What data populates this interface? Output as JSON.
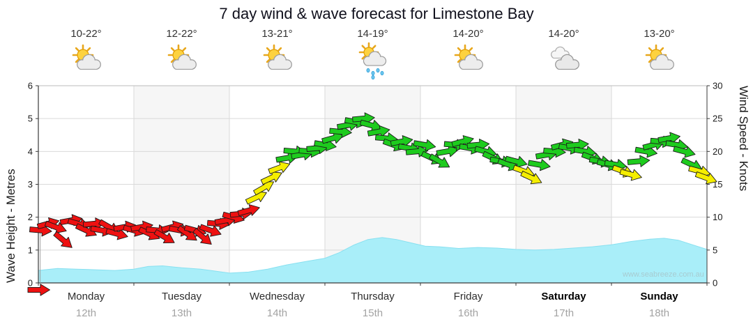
{
  "title": "7 day wind & wave forecast for Limestone Bay",
  "watermark": "www.seabreeze.com.au",
  "axes": {
    "left_label": "Wave Height - Metres",
    "right_label": "Wind Speed - Knots",
    "left_ticks": [
      0,
      1,
      2,
      3,
      4,
      5,
      6
    ],
    "right_ticks": [
      0,
      5,
      10,
      15,
      20,
      25,
      30
    ],
    "left_range": [
      0,
      6
    ],
    "right_range": [
      0,
      30
    ]
  },
  "days": [
    {
      "name": "Monday",
      "date": "12th",
      "temp": "10-22°",
      "icon": "partly-cloudy",
      "bold": false
    },
    {
      "name": "Tuesday",
      "date": "13th",
      "temp": "12-22°",
      "icon": "partly-cloudy",
      "bold": false
    },
    {
      "name": "Wednesday",
      "date": "14th",
      "temp": "13-21°",
      "icon": "partly-cloudy",
      "bold": false
    },
    {
      "name": "Thursday",
      "date": "15th",
      "temp": "14-19°",
      "icon": "rain",
      "bold": false
    },
    {
      "name": "Friday",
      "date": "16th",
      "temp": "14-20°",
      "icon": "partly-cloudy",
      "bold": false
    },
    {
      "name": "Saturday",
      "date": "17th",
      "temp": "14-20°",
      "icon": "cloudy",
      "bold": true
    },
    {
      "name": "Sunday",
      "date": "18th",
      "temp": "13-20°",
      "icon": "partly-cloudy",
      "bold": true
    }
  ],
  "colors": {
    "wind_low": "#ee1111",
    "wind_mid": "#f5ee00",
    "wind_high": "#1ecb1e",
    "wave_fill": "#a9eef9",
    "wave_edge": "#88e0f0",
    "grid": "#d9d9d9",
    "band": "#f6f6f6"
  },
  "chart_data": {
    "type": "line",
    "title": "7 day wind & wave forecast for Limestone Bay",
    "x_axis": "day index (0 = start of Monday 12th, each unit = 1 day)",
    "x_ticks": [
      "Monday 12th",
      "Tuesday 13th",
      "Wednesday 14th",
      "Thursday 15th",
      "Friday 16th",
      "Saturday 17th",
      "Sunday 18th"
    ],
    "y_left": {
      "label": "Wave Height - Metres",
      "range": [
        0,
        6
      ]
    },
    "y_right": {
      "label": "Wind Speed - Knots",
      "range": [
        0,
        30
      ]
    },
    "color_rule": "wind arrows: red < 12 kn, yellow 12-17.5 kn, green > 17.5 kn",
    "series": [
      {
        "name": "Wind Speed",
        "units": "knots",
        "style": "direction-arrows",
        "format": "[day, knots, direction_deg_cw_from_east]",
        "points": [
          [
            0.0,
            0,
            0
          ],
          [
            0.02,
            8,
            5
          ],
          [
            0.1,
            9,
            -15
          ],
          [
            0.18,
            8.5,
            20
          ],
          [
            0.26,
            6.5,
            40
          ],
          [
            0.34,
            9.5,
            -10
          ],
          [
            0.42,
            9,
            15
          ],
          [
            0.5,
            8,
            25
          ],
          [
            0.58,
            9,
            -5
          ],
          [
            0.66,
            8,
            10
          ],
          [
            0.74,
            8.5,
            30
          ],
          [
            0.82,
            7.5,
            15
          ],
          [
            0.9,
            8.5,
            -10
          ],
          [
            1.0,
            8,
            15
          ],
          [
            1.08,
            8.5,
            -10
          ],
          [
            1.16,
            7.5,
            25
          ],
          [
            1.24,
            8,
            5
          ],
          [
            1.32,
            7,
            30
          ],
          [
            1.4,
            8.5,
            -15
          ],
          [
            1.48,
            8,
            10
          ],
          [
            1.56,
            7.5,
            35
          ],
          [
            1.64,
            8,
            15
          ],
          [
            1.72,
            7,
            40
          ],
          [
            1.8,
            8,
            20
          ],
          [
            1.88,
            9,
            5
          ],
          [
            1.96,
            9.5,
            -10
          ],
          [
            2.04,
            10,
            15
          ],
          [
            2.12,
            10.5,
            -5
          ],
          [
            2.2,
            11,
            -15
          ],
          [
            2.28,
            13,
            -25
          ],
          [
            2.36,
            14.5,
            -30
          ],
          [
            2.44,
            16,
            -25
          ],
          [
            2.52,
            17.5,
            -20
          ],
          [
            2.6,
            19,
            -10
          ],
          [
            2.68,
            20,
            5
          ],
          [
            2.76,
            19.5,
            -10
          ],
          [
            2.84,
            20,
            5
          ],
          [
            2.92,
            20.5,
            -5
          ],
          [
            3.0,
            21,
            10
          ],
          [
            3.08,
            22,
            -15
          ],
          [
            3.16,
            23,
            5
          ],
          [
            3.24,
            24,
            -10
          ],
          [
            3.32,
            24.5,
            10
          ],
          [
            3.4,
            25,
            -5
          ],
          [
            3.48,
            24,
            15
          ],
          [
            3.56,
            23,
            -10
          ],
          [
            3.64,
            22,
            5
          ],
          [
            3.72,
            21,
            20
          ],
          [
            3.8,
            21.5,
            -10
          ],
          [
            3.88,
            20.5,
            10
          ],
          [
            3.96,
            20,
            -5
          ],
          [
            4.04,
            21,
            10
          ],
          [
            4.12,
            19,
            25
          ],
          [
            4.2,
            18.5,
            30
          ],
          [
            4.28,
            20,
            -10
          ],
          [
            4.36,
            21,
            5
          ],
          [
            4.44,
            21.5,
            -15
          ],
          [
            4.52,
            20.5,
            10
          ],
          [
            4.6,
            21,
            -5
          ],
          [
            4.68,
            20,
            15
          ],
          [
            4.76,
            19,
            25
          ],
          [
            4.84,
            18.5,
            10
          ],
          [
            4.92,
            18,
            20
          ],
          [
            5.0,
            18.5,
            15
          ],
          [
            5.08,
            17,
            20
          ],
          [
            5.16,
            16,
            25
          ],
          [
            5.24,
            18,
            10
          ],
          [
            5.32,
            19.5,
            -10
          ],
          [
            5.4,
            20,
            5
          ],
          [
            5.48,
            21,
            -15
          ],
          [
            5.56,
            20.5,
            10
          ],
          [
            5.64,
            21,
            -5
          ],
          [
            5.72,
            20,
            10
          ],
          [
            5.8,
            19,
            20
          ],
          [
            5.88,
            18.5,
            10
          ],
          [
            5.96,
            18,
            15
          ],
          [
            6.04,
            18,
            10
          ],
          [
            6.12,
            17,
            20
          ],
          [
            6.2,
            16.5,
            15
          ],
          [
            6.28,
            18.5,
            -5
          ],
          [
            6.36,
            20,
            10
          ],
          [
            6.44,
            21,
            -15
          ],
          [
            6.52,
            21.5,
            5
          ],
          [
            6.6,
            22,
            -10
          ],
          [
            6.68,
            21,
            10
          ],
          [
            6.76,
            20,
            15
          ],
          [
            6.84,
            18,
            25
          ],
          [
            6.92,
            17,
            15
          ],
          [
            6.99,
            16,
            20
          ]
        ]
      },
      {
        "name": "Wave Height",
        "units": "metres",
        "style": "area",
        "format": "[day, metres]",
        "points": [
          [
            0.0,
            0.38
          ],
          [
            0.2,
            0.44
          ],
          [
            0.4,
            0.42
          ],
          [
            0.6,
            0.4
          ],
          [
            0.8,
            0.38
          ],
          [
            1.0,
            0.42
          ],
          [
            1.15,
            0.5
          ],
          [
            1.3,
            0.52
          ],
          [
            1.5,
            0.46
          ],
          [
            1.7,
            0.42
          ],
          [
            1.85,
            0.36
          ],
          [
            2.0,
            0.3
          ],
          [
            2.2,
            0.33
          ],
          [
            2.4,
            0.42
          ],
          [
            2.6,
            0.55
          ],
          [
            2.8,
            0.65
          ],
          [
            3.0,
            0.75
          ],
          [
            3.15,
            0.92
          ],
          [
            3.3,
            1.15
          ],
          [
            3.45,
            1.32
          ],
          [
            3.6,
            1.38
          ],
          [
            3.75,
            1.32
          ],
          [
            3.9,
            1.22
          ],
          [
            4.05,
            1.12
          ],
          [
            4.2,
            1.1
          ],
          [
            4.4,
            1.05
          ],
          [
            4.6,
            1.08
          ],
          [
            4.8,
            1.06
          ],
          [
            5.0,
            1.02
          ],
          [
            5.2,
            1.0
          ],
          [
            5.4,
            1.02
          ],
          [
            5.6,
            1.06
          ],
          [
            5.8,
            1.1
          ],
          [
            6.0,
            1.16
          ],
          [
            6.2,
            1.26
          ],
          [
            6.4,
            1.33
          ],
          [
            6.55,
            1.36
          ],
          [
            6.7,
            1.3
          ],
          [
            6.85,
            1.16
          ],
          [
            7.0,
            1.02
          ]
        ]
      }
    ]
  }
}
